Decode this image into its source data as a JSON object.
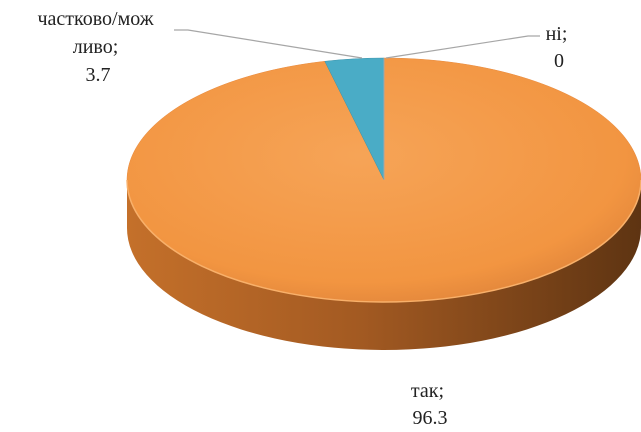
{
  "chart_data": {
    "type": "pie",
    "style": "3d",
    "slices": [
      {
        "label": "так",
        "value": 96.3,
        "color": "#f29541"
      },
      {
        "label": "частково/можливо",
        "value": 3.7,
        "color": "#4aacc6"
      },
      {
        "label": "ні",
        "value": 0,
        "color": "#a6a6a6"
      }
    ],
    "data_labels": [
      {
        "lines": [
          "частково/мож",
          "ливо;",
          "3.7"
        ]
      },
      {
        "lines": [
          "ні;",
          "0"
        ]
      },
      {
        "lines": [
          "так;",
          "96.3"
        ]
      }
    ],
    "legend": "none"
  }
}
